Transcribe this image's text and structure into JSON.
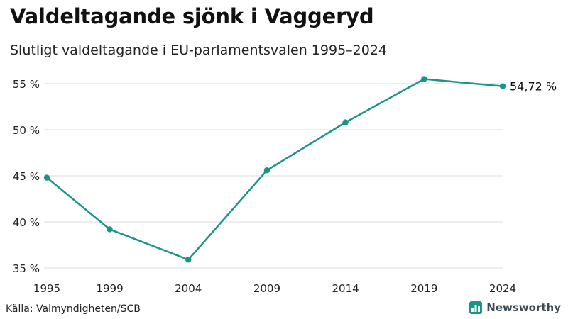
{
  "header": {
    "title": "Valdeltagande sjönk i Vaggeryd",
    "subtitle": "Slutligt valdeltagande i EU-parlamentsvalen 1995–2024"
  },
  "footer": {
    "source": "Källa: Valmyndigheten/SCB",
    "brand": "Newsworthy",
    "brand_icon": "bar-chart-logo-icon"
  },
  "colors": {
    "line": "#1a9485",
    "grid": "#dddddd",
    "brand": "#3e4a55"
  },
  "chart_data": {
    "type": "line",
    "title": "Valdeltagande sjönk i Vaggeryd",
    "subtitle": "Slutligt valdeltagande i EU-parlamentsvalen 1995–2024",
    "xlabel": "",
    "ylabel": "",
    "x": [
      1995,
      1999,
      2004,
      2009,
      2014,
      2019,
      2024
    ],
    "series": [
      {
        "values": [
          44.8,
          39.2,
          35.9,
          45.6,
          50.8,
          55.5,
          54.72
        ]
      }
    ],
    "ylim": [
      35,
      56
    ],
    "yticks": [
      35,
      40,
      45,
      50,
      55
    ],
    "ytick_labels": [
      "35 %",
      "40 %",
      "45 %",
      "50 %",
      "55 %"
    ],
    "xtick_labels": [
      "1995",
      "1999",
      "2004",
      "2009",
      "2014",
      "2019",
      "2024"
    ],
    "end_label": "54,72 %",
    "grid": true,
    "legend": "none"
  }
}
